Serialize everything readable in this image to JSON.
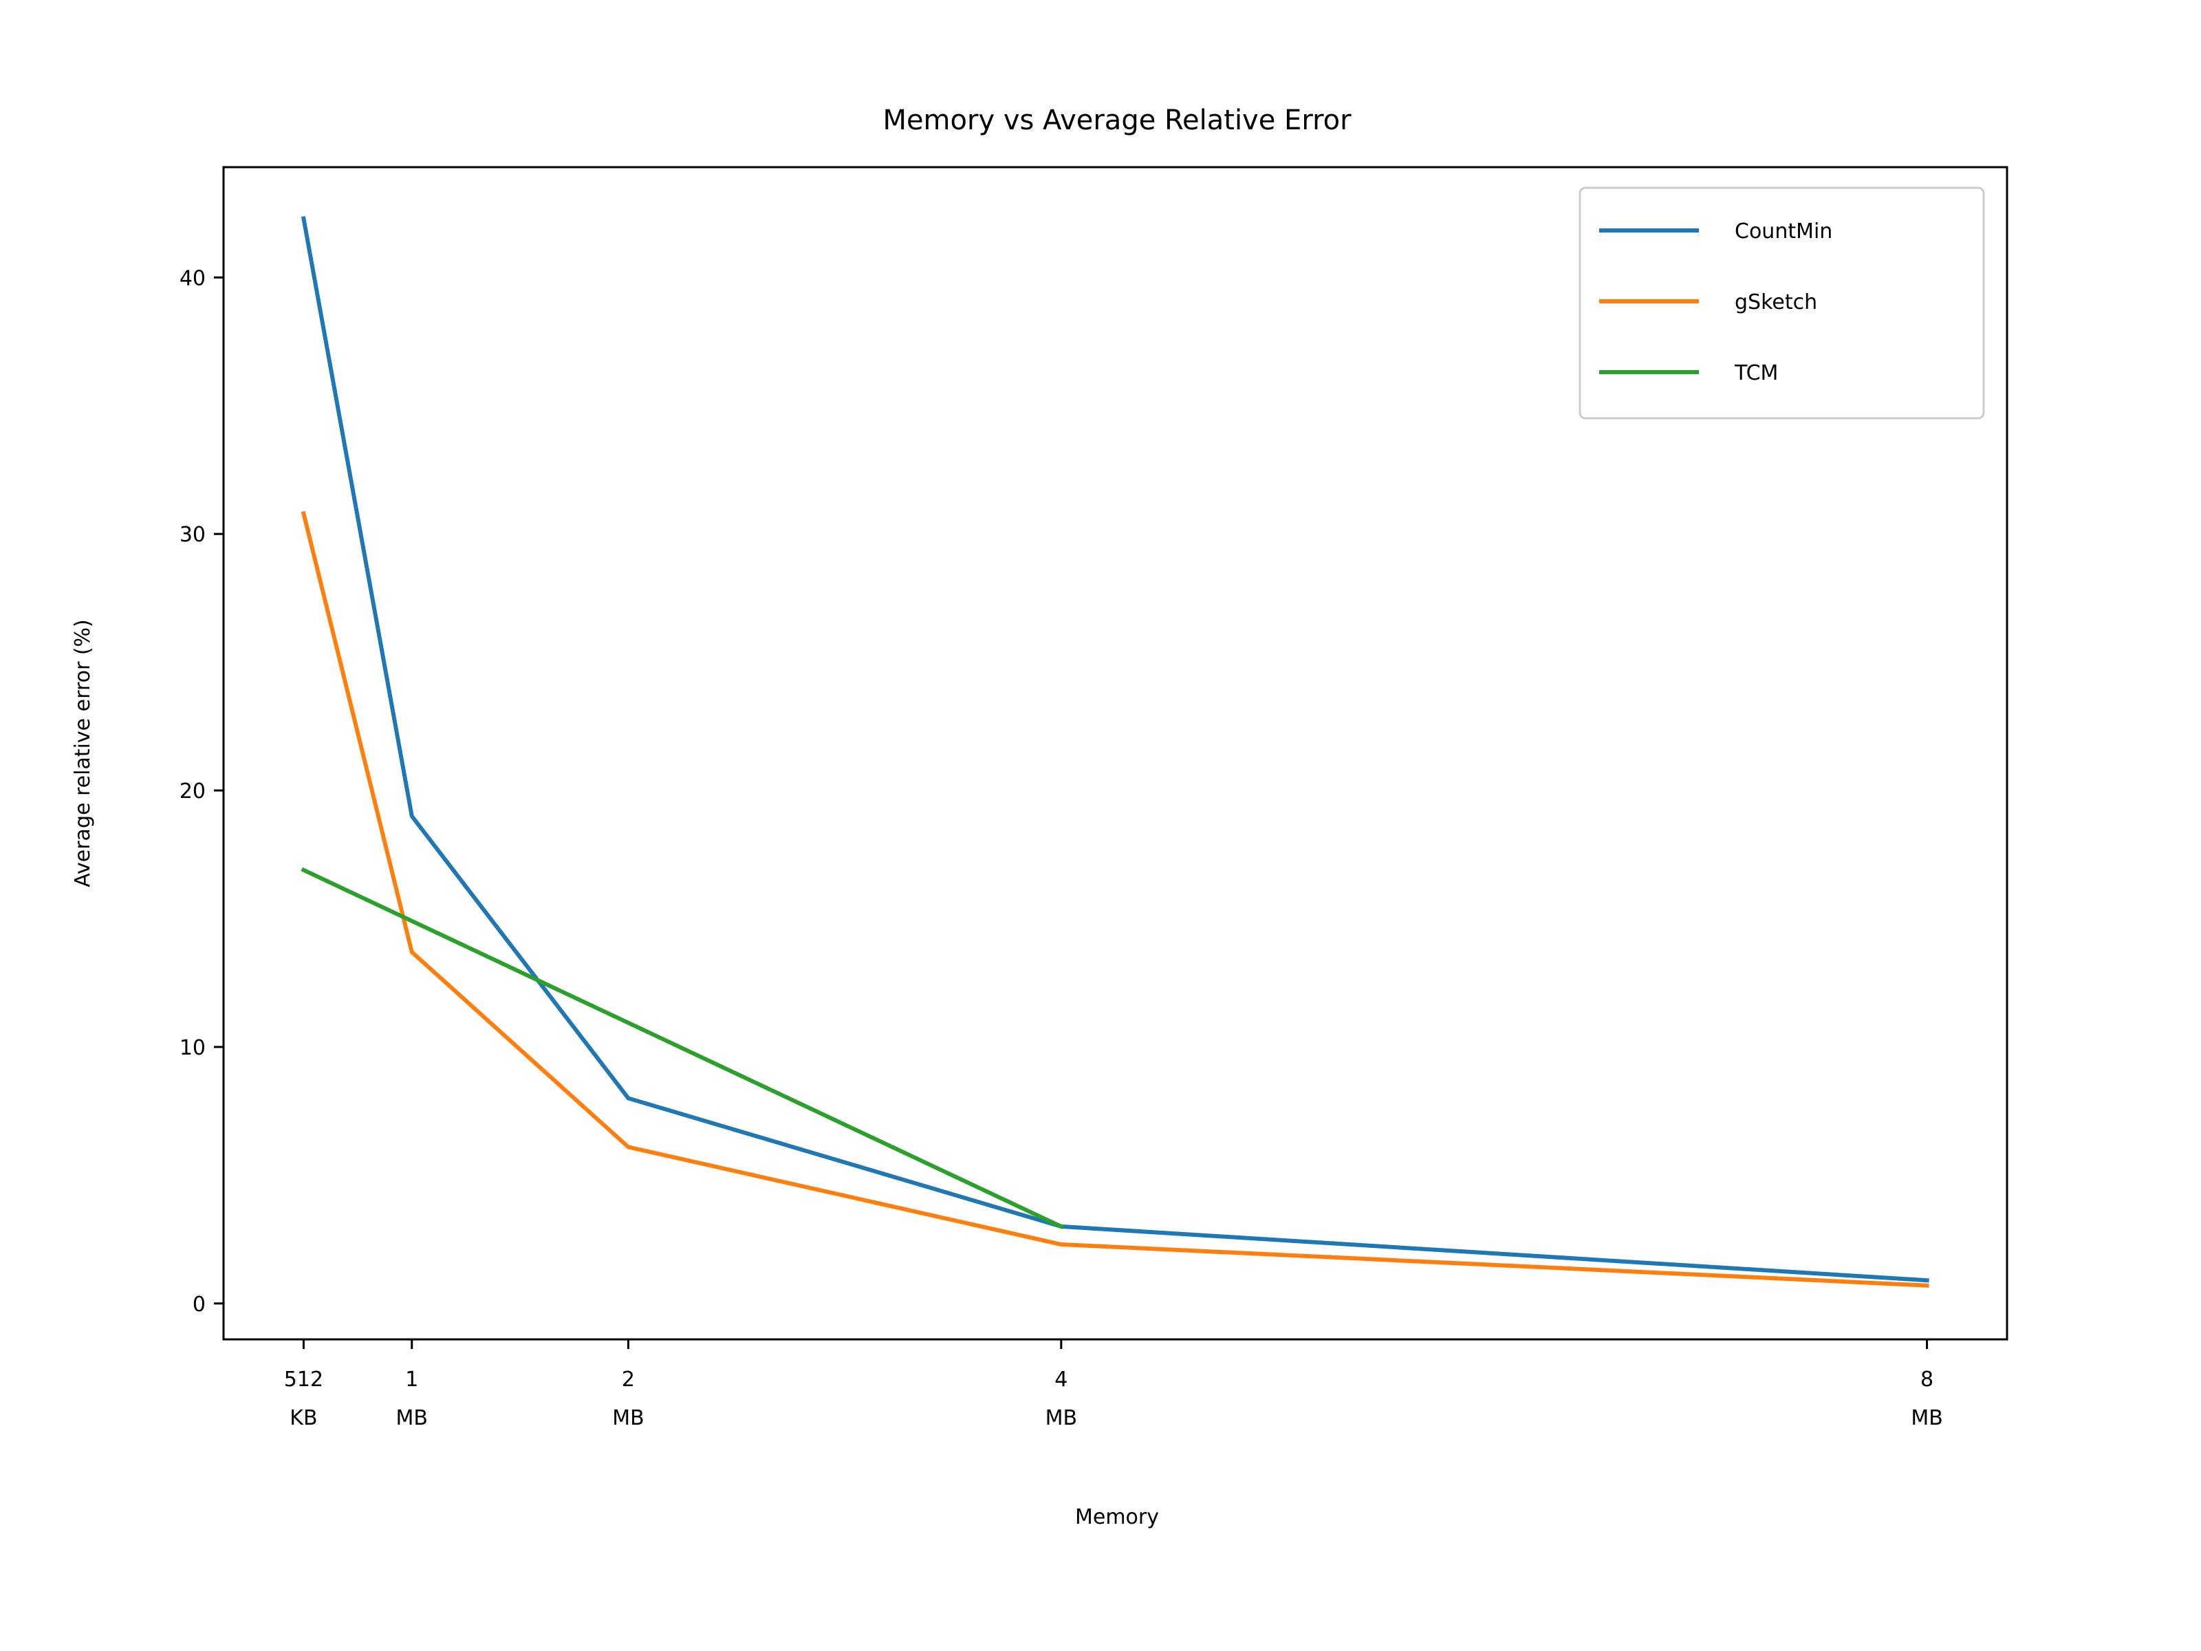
{
  "chart_data": {
    "type": "line",
    "title": "Memory vs Average Relative Error",
    "xlabel": "Memory",
    "ylabel": "Average relative error (%)",
    "x_unit": "MB",
    "x_ticks": [
      {
        "value": 0.5,
        "lines": [
          "512",
          "KB"
        ]
      },
      {
        "value": 1,
        "lines": [
          "1",
          "MB"
        ]
      },
      {
        "value": 2,
        "lines": [
          "2",
          "MB"
        ]
      },
      {
        "value": 4,
        "lines": [
          "4",
          "MB"
        ]
      },
      {
        "value": 8,
        "lines": [
          "8",
          "MB"
        ]
      }
    ],
    "y_ticks": [
      0,
      10,
      20,
      30,
      40
    ],
    "xlim": [
      0.13,
      8.37
    ],
    "ylim": [
      -1.4,
      44.3
    ],
    "grid": false,
    "legend_position": "top-right",
    "series": [
      {
        "name": "CountMin",
        "color": "#1f77b4",
        "x": [
          0.5,
          1,
          2,
          4,
          8
        ],
        "y": [
          42.3,
          19.0,
          8.0,
          3.0,
          0.9
        ]
      },
      {
        "name": "gSketch",
        "color": "#ff7f0e",
        "x": [
          0.5,
          1,
          2,
          4,
          8
        ],
        "y": [
          30.8,
          13.7,
          6.1,
          2.3,
          0.7
        ]
      },
      {
        "name": "TCM",
        "color": "#2ca02c",
        "x": [
          0.5,
          4
        ],
        "y": [
          16.9,
          3.0
        ]
      }
    ]
  }
}
